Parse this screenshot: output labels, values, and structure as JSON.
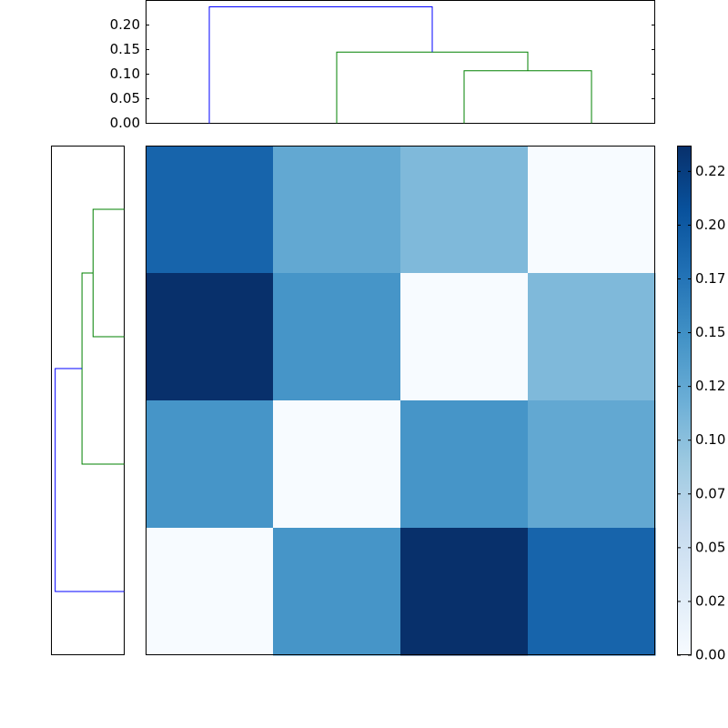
{
  "chart_data": {
    "type": "heatmap",
    "values": [
      [
        0.19,
        0.125,
        0.107,
        0
      ],
      [
        0.237,
        0.145,
        0,
        0.107
      ],
      [
        0.145,
        0,
        0.145,
        0.125
      ],
      [
        0,
        0.145,
        0.237,
        0.19
      ]
    ],
    "colormap": "Blues",
    "clim": [
      0,
      0.237
    ],
    "colorbar_ticks": [
      {
        "value": 0,
        "label": "0.00"
      },
      {
        "value": 0.025,
        "label": "0.02"
      },
      {
        "value": 0.05,
        "label": "0.05"
      },
      {
        "value": 0.075,
        "label": "0.07"
      },
      {
        "value": 0.1,
        "label": "0.10"
      },
      {
        "value": 0.125,
        "label": "0.12"
      },
      {
        "value": 0.15,
        "label": "0.15"
      },
      {
        "value": 0.175,
        "label": "0.17"
      },
      {
        "value": 0.2,
        "label": "0.20"
      },
      {
        "value": 0.225,
        "label": "0.22"
      }
    ],
    "dendrogram": {
      "ylim": [
        0,
        0.25
      ],
      "yticks": [
        {
          "value": 0,
          "label": "0.00"
        },
        {
          "value": 0.05,
          "label": "0.05"
        },
        {
          "value": 0.1,
          "label": "0.10"
        },
        {
          "value": 0.15,
          "label": "0.15"
        },
        {
          "value": 0.2,
          "label": "0.20"
        }
      ],
      "links": [
        {
          "children": [
            {
              "leaf": 2
            },
            {
              "leaf": 3
            }
          ],
          "height": 0.107,
          "color": "#008000"
        },
        {
          "children": [
            {
              "leaf": 1
            },
            {
              "link": 0
            }
          ],
          "height": 0.145,
          "color": "#008000"
        },
        {
          "children": [
            {
              "leaf": 0
            },
            {
              "link": 1
            }
          ],
          "height": 0.237,
          "color": "#0000ff"
        }
      ]
    }
  }
}
